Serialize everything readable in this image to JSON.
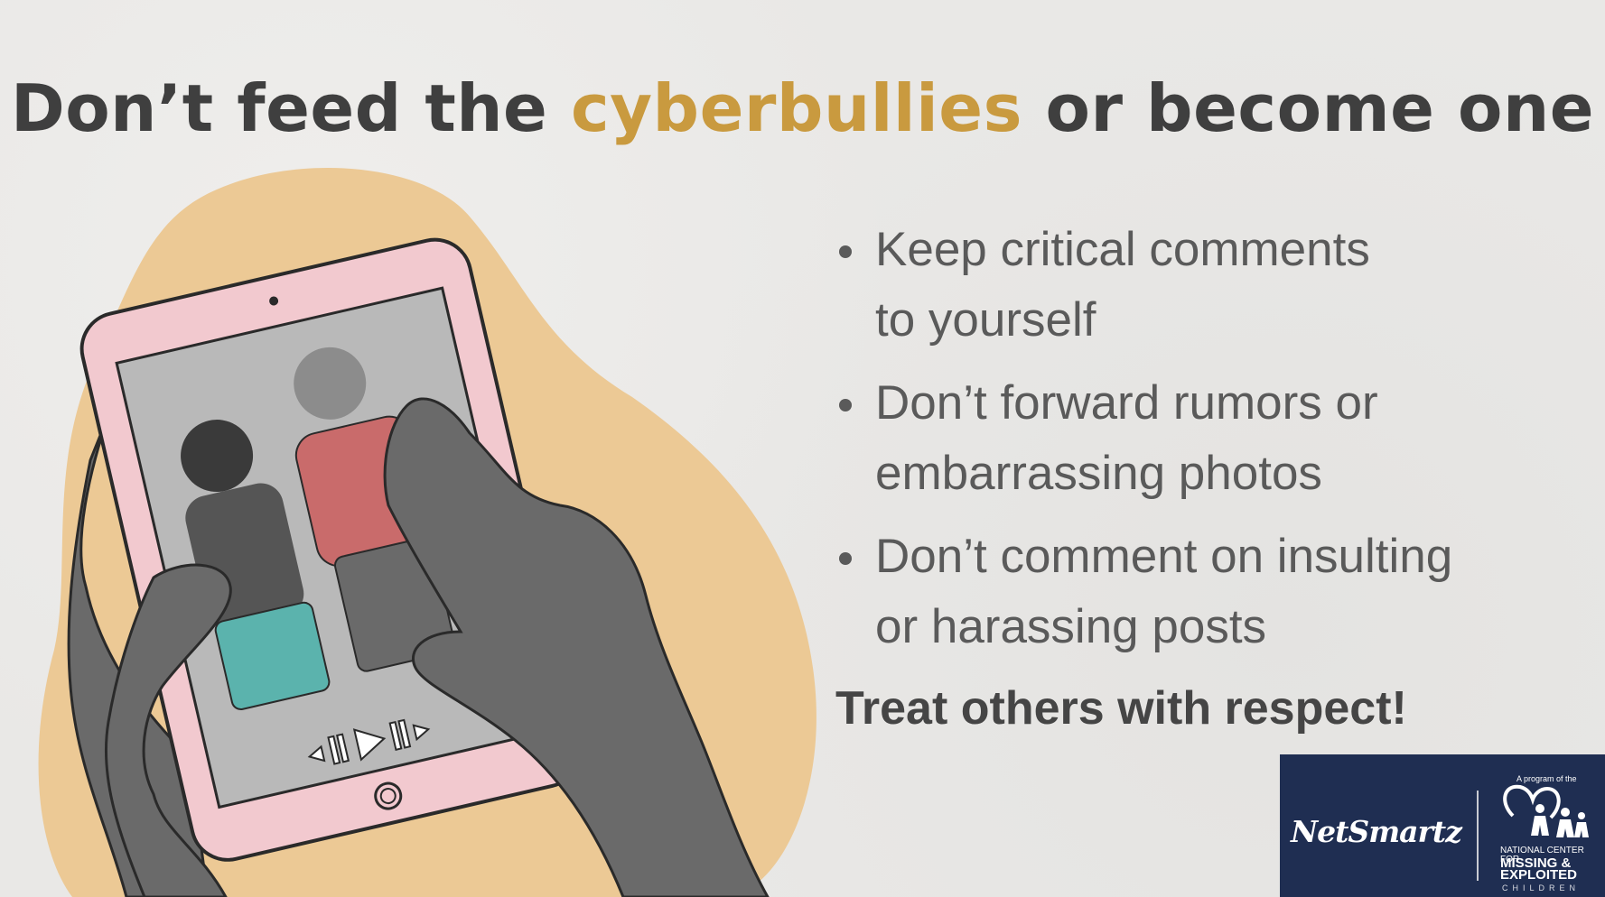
{
  "title": {
    "part1": "Don’t feed the ",
    "accent": "cyberbullies",
    "part2": " or become one"
  },
  "bullets": [
    {
      "line1": "Keep critical comments",
      "line2": "to yourself"
    },
    {
      "line1": "Don’t forward rumors or",
      "line2": "embarrassing photos"
    },
    {
      "line1": "Don’t comment on insulting",
      "line2": "or harassing posts"
    }
  ],
  "closing": "Treat others with respect!",
  "logo": {
    "brand": "NetSmartz",
    "program_of": "A program of the",
    "org_line1": "NATIONAL CENTER FOR",
    "org_line2": "MISSING &",
    "org_line3": "EXPLOITED",
    "org_line4": "CHILDREN"
  },
  "colors": {
    "accent": "#c99a3f",
    "text": "#5a5a5a",
    "tablet": "#f2c9cf",
    "blob": "#ecc995",
    "logo_bg": "#1f2e52"
  },
  "icons": [
    "tablet-illustration",
    "play-control-icon",
    "home-button-icon",
    "heart-family-logo-icon"
  ]
}
